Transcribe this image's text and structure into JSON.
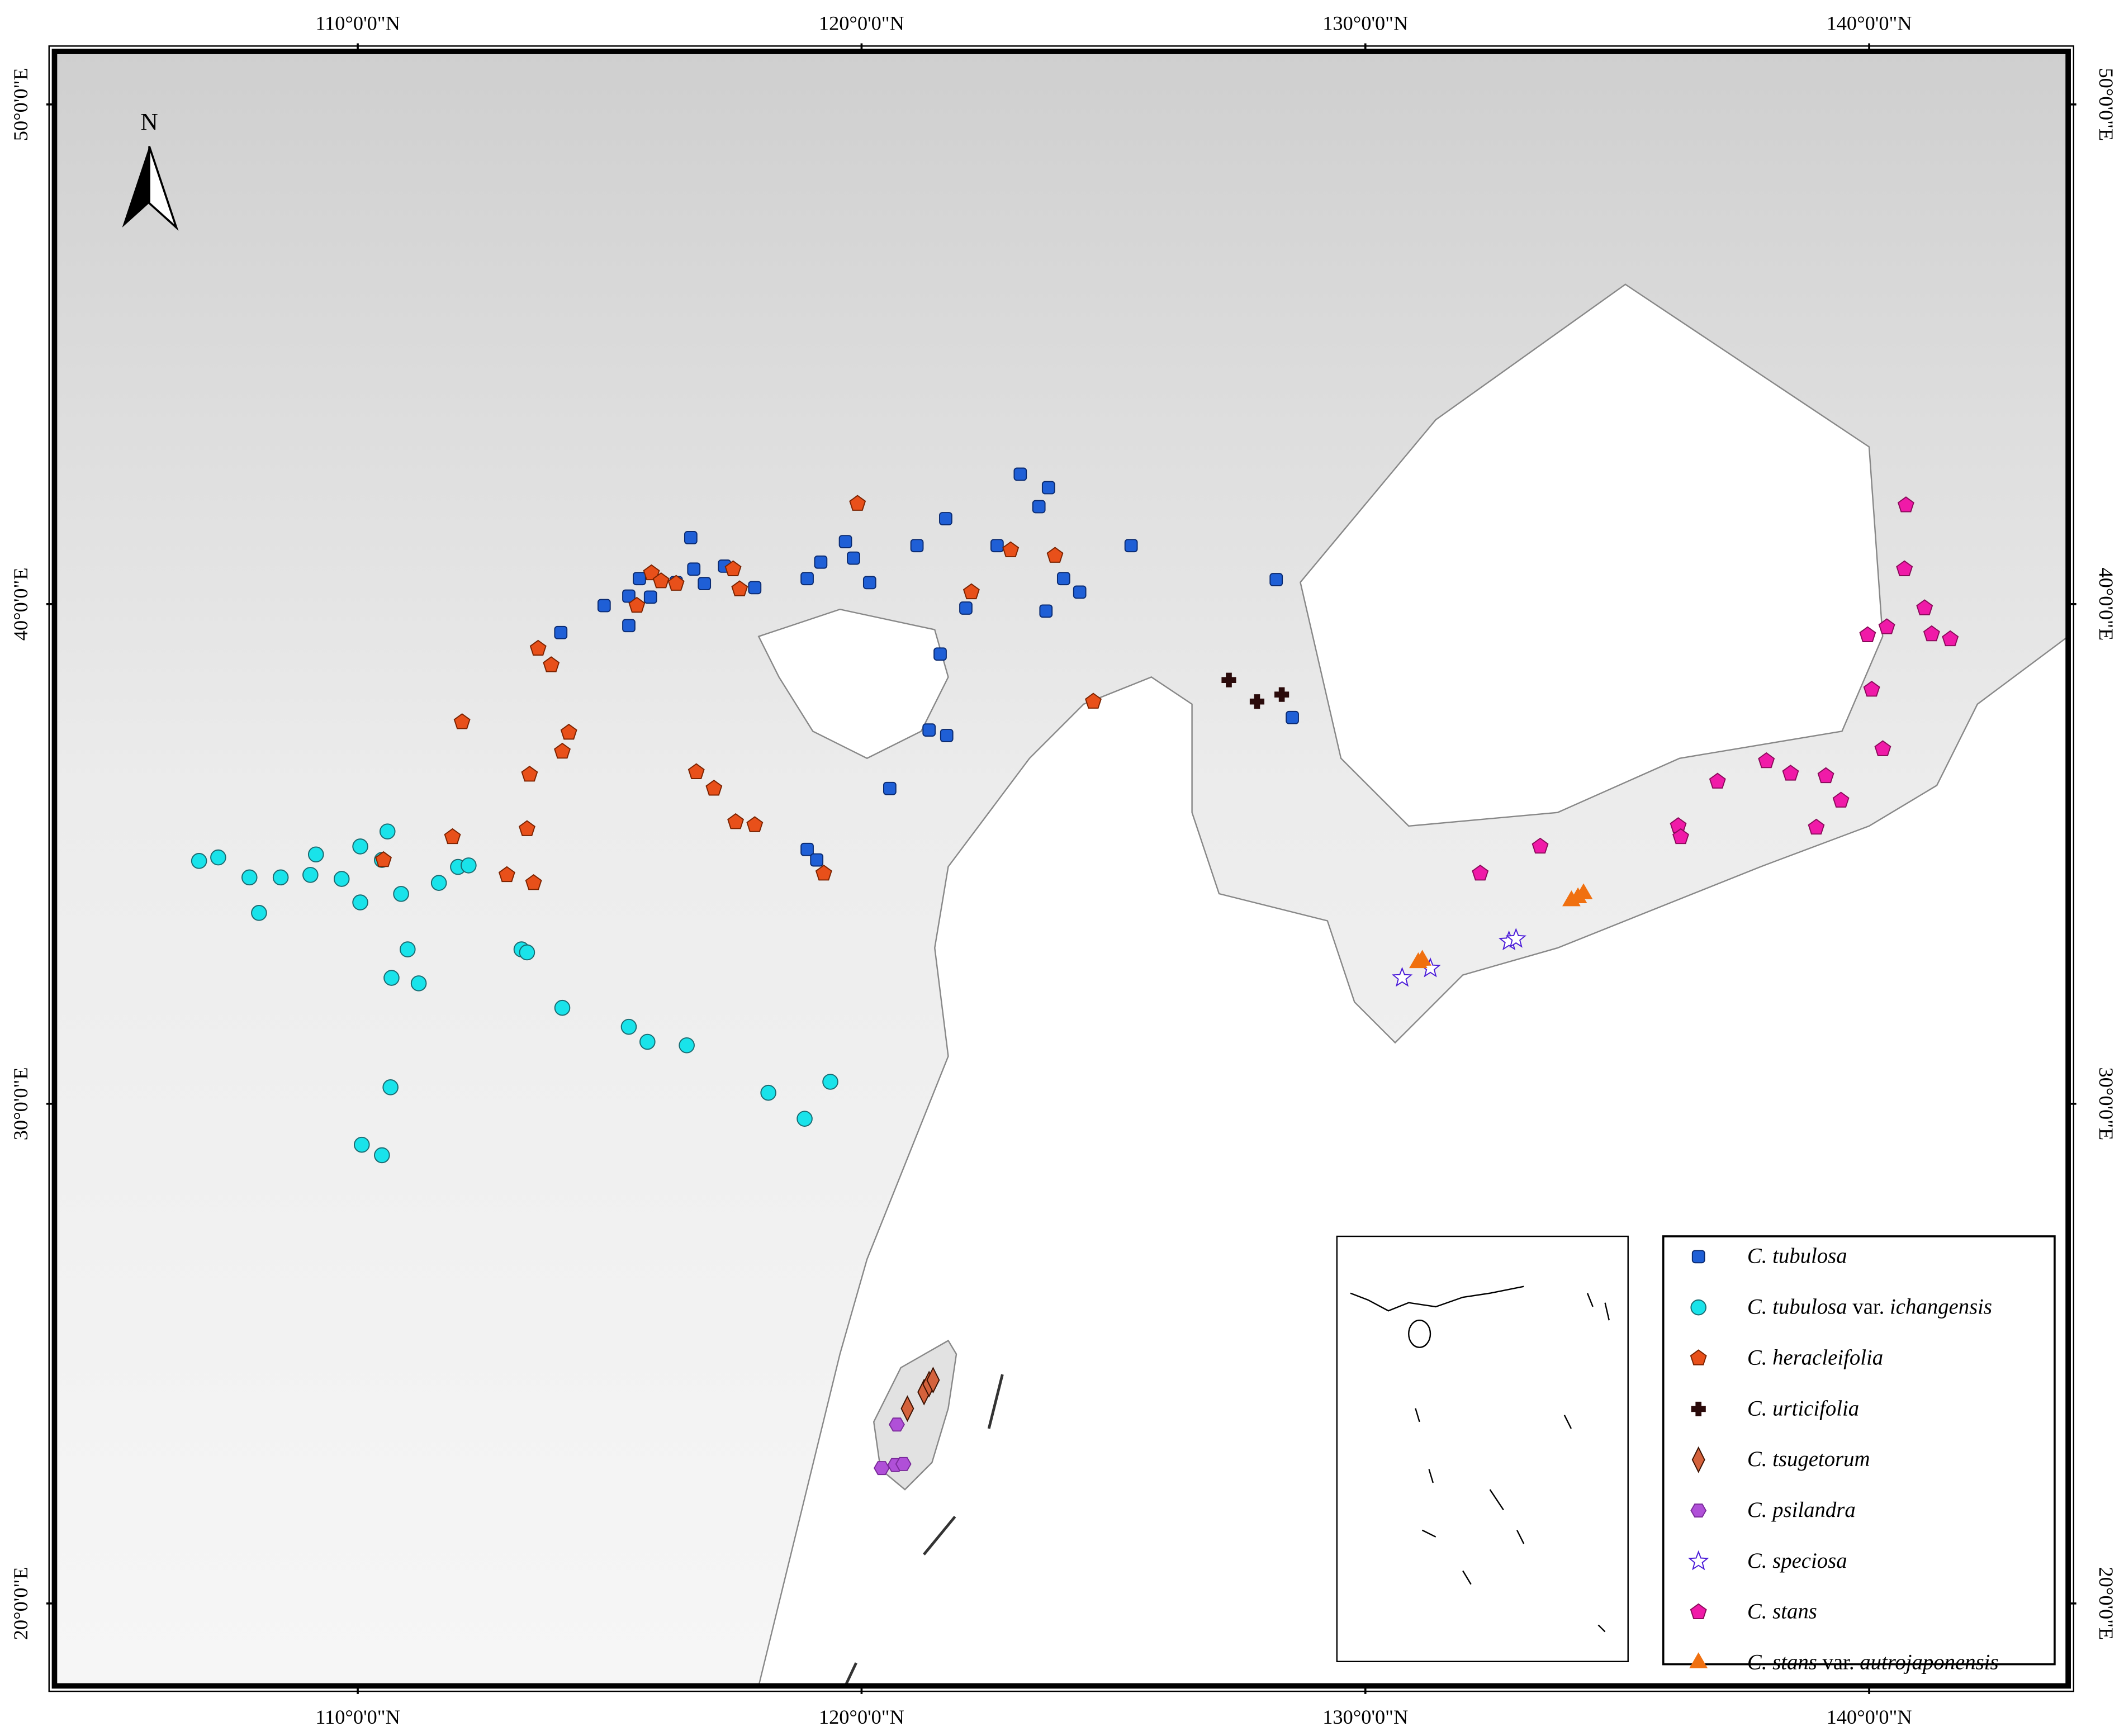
{
  "map": {
    "north_label": "N",
    "xlim": [
      103.98,
      143.95
    ],
    "ylim": [
      18.35,
      51.06
    ],
    "xticks": [
      {
        "value": 110,
        "label": "110°0'0\"N"
      },
      {
        "value": 120,
        "label": "120°0'0\"N"
      },
      {
        "value": 130,
        "label": "130°0'0\"N"
      },
      {
        "value": 140,
        "label": "140°0'0\"N"
      }
    ],
    "yticks": [
      {
        "value": 50,
        "label": "50°0'0\"E"
      },
      {
        "value": 40,
        "label": "40°0'0\"E"
      },
      {
        "value": 30,
        "label": "30°0'0\"E"
      },
      {
        "value": 20,
        "label": "20°0'0\"E"
      }
    ],
    "species": [
      {
        "parts": [
          "C. tubulosa"
        ],
        "marker": "square",
        "color": "#1f5fd6",
        "stroke": "#0a2a70",
        "points": [
          [
            116.61,
            41.33
          ],
          [
            116.32,
            40.43
          ],
          [
            115.81,
            40.14
          ],
          [
            115.38,
            40.16
          ],
          [
            114.89,
            39.97
          ],
          [
            115.38,
            39.57
          ],
          [
            115.59,
            40.51
          ],
          [
            116.67,
            40.7
          ],
          [
            116.88,
            40.41
          ],
          [
            117.28,
            40.76
          ],
          [
            117.88,
            40.33
          ],
          [
            114.03,
            39.43
          ],
          [
            118.92,
            40.51
          ],
          [
            119.19,
            40.84
          ],
          [
            119.68,
            41.25
          ],
          [
            119.84,
            40.92
          ],
          [
            120.16,
            40.43
          ],
          [
            121.1,
            41.17
          ],
          [
            121.67,
            41.71
          ],
          [
            122.69,
            41.17
          ],
          [
            123.15,
            42.6
          ],
          [
            123.71,
            42.33
          ],
          [
            123.52,
            41.95
          ],
          [
            124.01,
            40.51
          ],
          [
            124.33,
            40.24
          ],
          [
            123.66,
            39.86
          ],
          [
            122.07,
            39.92
          ],
          [
            121.56,
            39.0
          ],
          [
            125.35,
            41.17
          ],
          [
            128.23,
            40.49
          ],
          [
            121.34,
            37.48
          ],
          [
            121.69,
            37.37
          ],
          [
            120.56,
            36.31
          ],
          [
            118.92,
            35.09
          ],
          [
            119.11,
            34.88
          ],
          [
            128.55,
            37.73
          ]
        ]
      },
      {
        "parts": [
          "C. tubulosa",
          " var. ",
          "ichangensis"
        ],
        "marker": "circle",
        "color": "#19e3ea",
        "stroke": "#1a6a70",
        "points": [
          [
            106.85,
            34.86
          ],
          [
            107.23,
            34.93
          ],
          [
            107.85,
            34.53
          ],
          [
            108.47,
            34.53
          ],
          [
            109.06,
            34.58
          ],
          [
            109.68,
            34.5
          ],
          [
            109.17,
            34.99
          ],
          [
            110.05,
            35.15
          ],
          [
            110.48,
            34.88
          ],
          [
            110.59,
            35.45
          ],
          [
            110.86,
            34.2
          ],
          [
            108.04,
            33.82
          ],
          [
            110.05,
            34.03
          ],
          [
            111.61,
            34.42
          ],
          [
            111.99,
            34.74
          ],
          [
            112.2,
            34.77
          ],
          [
            113.25,
            33.09
          ],
          [
            113.36,
            33.03
          ],
          [
            110.99,
            33.09
          ],
          [
            110.67,
            32.52
          ],
          [
            111.21,
            32.41
          ],
          [
            114.06,
            31.92
          ],
          [
            115.38,
            31.54
          ],
          [
            115.75,
            31.24
          ],
          [
            116.53,
            31.17
          ],
          [
            110.65,
            30.33
          ],
          [
            118.15,
            30.22
          ],
          [
            119.38,
            30.44
          ],
          [
            118.87,
            29.7
          ],
          [
            110.08,
            29.18
          ],
          [
            110.48,
            28.97
          ]
        ]
      },
      {
        "parts": [
          "C. heracleifolia"
        ],
        "marker": "pentagon",
        "color": "#e8501a",
        "stroke": "#7a2200",
        "points": [
          [
            119.92,
            42.01
          ],
          [
            115.83,
            40.62
          ],
          [
            116.02,
            40.46
          ],
          [
            116.32,
            40.41
          ],
          [
            115.54,
            39.97
          ],
          [
            117.45,
            40.7
          ],
          [
            117.58,
            40.3
          ],
          [
            113.58,
            39.11
          ],
          [
            113.84,
            38.78
          ],
          [
            112.07,
            37.64
          ],
          [
            114.19,
            37.43
          ],
          [
            114.06,
            37.05
          ],
          [
            113.41,
            36.59
          ],
          [
            113.36,
            35.5
          ],
          [
            111.88,
            35.34
          ],
          [
            112.96,
            34.58
          ],
          [
            113.49,
            34.42
          ],
          [
            110.51,
            34.88
          ],
          [
            116.72,
            36.64
          ],
          [
            117.07,
            36.31
          ],
          [
            117.5,
            35.64
          ],
          [
            117.88,
            35.58
          ],
          [
            119.25,
            34.61
          ],
          [
            122.18,
            40.24
          ],
          [
            122.96,
            41.08
          ],
          [
            123.84,
            40.97
          ],
          [
            124.6,
            38.05
          ]
        ]
      },
      {
        "parts": [
          "C. urticifolia"
        ],
        "marker": "cross",
        "color": "#2a0a0a",
        "stroke": "#2a0a0a",
        "points": [
          [
            127.29,
            38.48
          ],
          [
            127.85,
            38.05
          ],
          [
            128.34,
            38.19
          ]
        ]
      },
      {
        "parts": [
          "C. tsugetorum"
        ],
        "marker": "diamond",
        "color": "#d4623c",
        "stroke": "#3a1000",
        "points": [
          [
            120.91,
            23.9
          ],
          [
            121.24,
            24.23
          ],
          [
            121.34,
            24.39
          ],
          [
            121.42,
            24.47
          ]
        ]
      },
      {
        "parts": [
          "C. psilandra"
        ],
        "marker": "hexagon",
        "color": "#b050d8",
        "stroke": "#7a2a9a",
        "points": [
          [
            120.7,
            23.58
          ],
          [
            120.4,
            22.71
          ],
          [
            120.67,
            22.77
          ],
          [
            120.83,
            22.79
          ]
        ]
      },
      {
        "parts": [
          "C. speciosa"
        ],
        "marker": "star",
        "color": "#ffffff",
        "stroke": "#4a1ad8",
        "points": [
          [
            130.73,
            32.52
          ],
          [
            131.29,
            32.71
          ],
          [
            132.85,
            33.25
          ],
          [
            132.99,
            33.3
          ]
        ]
      },
      {
        "parts": [
          "C. stans"
        ],
        "marker": "pentagon",
        "color": "#f01aa8",
        "stroke": "#8a0a5a",
        "points": [
          [
            140.73,
            41.98
          ],
          [
            140.7,
            40.7
          ],
          [
            141.1,
            39.92
          ],
          [
            139.97,
            39.38
          ],
          [
            140.35,
            39.54
          ],
          [
            141.24,
            39.4
          ],
          [
            141.61,
            39.3
          ],
          [
            140.05,
            38.29
          ],
          [
            140.27,
            37.1
          ],
          [
            136.99,
            36.45
          ],
          [
            137.96,
            36.86
          ],
          [
            138.44,
            36.61
          ],
          [
            139.14,
            36.56
          ],
          [
            139.44,
            36.07
          ],
          [
            138.95,
            35.53
          ],
          [
            136.21,
            35.56
          ],
          [
            136.26,
            35.34
          ],
          [
            133.47,
            35.15
          ],
          [
            132.28,
            34.61
          ]
        ]
      },
      {
        "parts": [
          "C. stans",
          " var. ",
          "autrojaponensis"
        ],
        "marker": "triangle",
        "color": "#f07010",
        "stroke": "#f07010",
        "points": [
          [
            131.05,
            32.82
          ],
          [
            131.13,
            32.87
          ],
          [
            134.09,
            34.06
          ],
          [
            134.22,
            34.12
          ],
          [
            134.33,
            34.2
          ]
        ]
      }
    ]
  }
}
